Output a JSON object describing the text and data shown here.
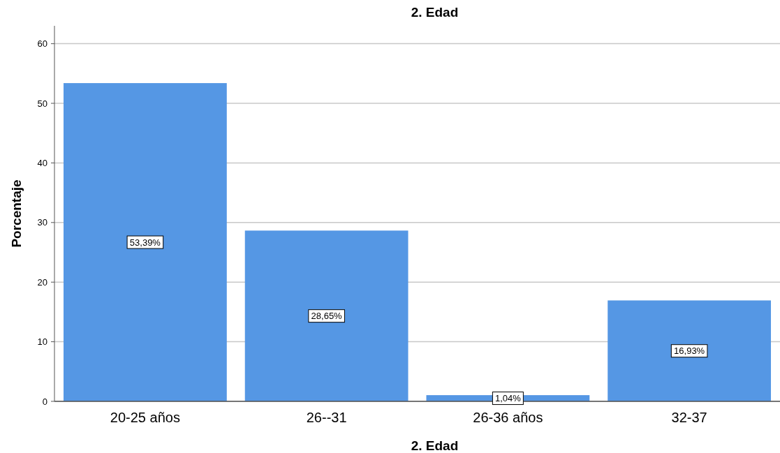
{
  "chart_data": {
    "type": "bar",
    "title": "2. Edad",
    "xlabel": "2. Edad",
    "ylabel": "Porcentaje",
    "categories": [
      "20-25 años",
      "26--31",
      "26-36 años",
      "32-37"
    ],
    "values": [
      53.39,
      28.65,
      1.04,
      16.93
    ],
    "value_labels": [
      "53,39%",
      "28,65%",
      "1,04%",
      "16,93%"
    ],
    "color": "#5597e4",
    "ylim": [
      0,
      63
    ],
    "yticks": [
      0,
      10,
      20,
      30,
      40,
      50,
      60
    ],
    "grid": "y"
  }
}
